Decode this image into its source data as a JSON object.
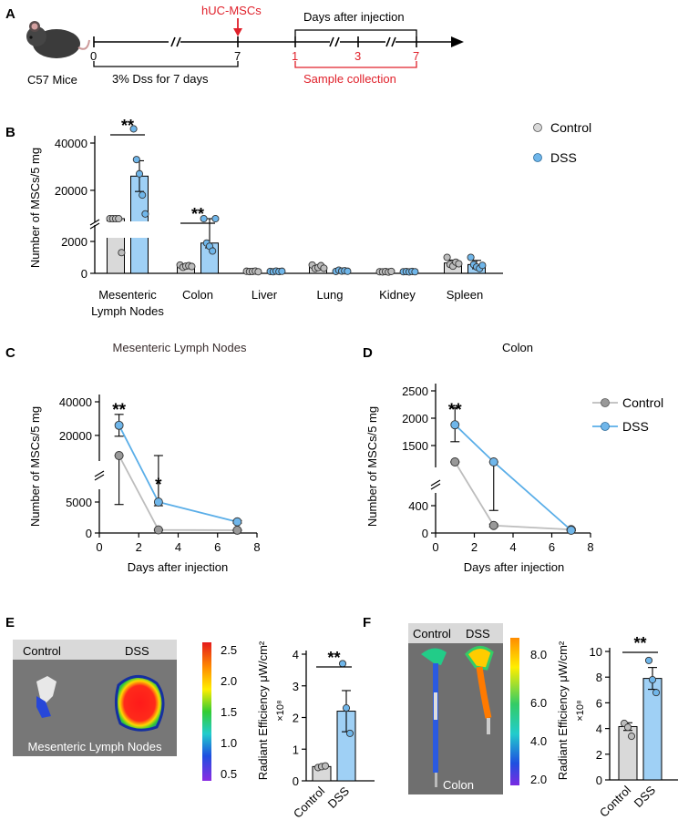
{
  "panel_labels": {
    "a": "A",
    "b": "B",
    "c": "C",
    "d": "D",
    "e": "E",
    "f": "F"
  },
  "colors": {
    "control_fill": "#d9d9d9",
    "control_dot": "#bdbdbd",
    "dss_fill": "#9fd0f5",
    "dss_dot": "#6fb6ea",
    "line_control": "#bdbdbd",
    "line_dss": "#5aaee8",
    "red": "#e0202a"
  },
  "timeline": {
    "mouse_label": "C57 Mice",
    "treatment_label": "hUC-MSCs",
    "days_after_label": "Days after injection",
    "tick_0": "0",
    "tick_7": "7",
    "sample_1": "1",
    "sample_3": "3",
    "sample_7": "7",
    "dss_label": "3% Dss for 7 days",
    "sample_collection_label": "Sample collection"
  },
  "chart_data": [
    {
      "id": "B",
      "type": "bar",
      "ylabel": "Number of MSCs/5 mg",
      "categories": [
        "Mesenteric Lymph Nodes",
        "Colon",
        "Liver",
        "Lung",
        "Kidney",
        "Spleen"
      ],
      "category_lines": [
        [
          "Mesenteric",
          "Lymph Nodes"
        ],
        [
          "Colon"
        ],
        [
          "Liver"
        ],
        [
          "Lung"
        ],
        [
          "Kidney"
        ],
        [
          "Spleen"
        ]
      ],
      "lower_ticks": [
        "0",
        "2000"
      ],
      "upper_ticks": [
        "20000",
        "40000"
      ],
      "significance": [
        {
          "category": 0,
          "label": "**"
        },
        {
          "category": 1,
          "label": "**"
        }
      ],
      "legend": [
        "Control",
        "DSS"
      ],
      "series": [
        {
          "name": "Control",
          "means": [
            5500,
            450,
            120,
            380,
            100,
            650
          ],
          "sem": [
            900,
            90,
            30,
            110,
            20,
            180
          ],
          "points": [
            [
              7000,
              6800,
              6500,
              5600,
              1300
            ],
            [
              520,
              380,
              450,
              480,
              430
            ],
            [
              130,
              110,
              120,
              140,
              100
            ],
            [
              520,
              300,
              360,
              480,
              320
            ],
            [
              100,
              90,
              110,
              80,
              120
            ],
            [
              1000,
              560,
              450,
              700,
              600
            ]
          ]
        },
        {
          "name": "DSS",
          "means": [
            26000,
            1900,
            120,
            150,
            100,
            550
          ],
          "sem": [
            6500,
            300,
            30,
            40,
            20,
            260
          ],
          "points": [
            [
              46000,
              33000,
              27000,
              18000,
              10000
            ],
            [
              2600,
              1900,
              1700,
              1400,
              2100
            ],
            [
              120,
              100,
              140,
              110,
              130
            ],
            [
              120,
              200,
              140,
              160,
              130
            ],
            [
              100,
              110,
              90,
              120,
              100
            ],
            [
              1000,
              550,
              400,
              300,
              500
            ]
          ]
        }
      ]
    },
    {
      "id": "C",
      "type": "line",
      "title": "Mesenteric Lymph Nodes",
      "xlabel": "Days after injection",
      "ylabel": "Number of MSCs/5 mg",
      "x_ticks": [
        "0",
        "2",
        "4",
        "6",
        "8"
      ],
      "lower_ticks": [
        "0",
        "5000"
      ],
      "upper_ticks": [
        "20000",
        "40000"
      ],
      "x": [
        1,
        3,
        7
      ],
      "series": [
        {
          "name": "Control",
          "values": [
            5500,
            500,
            450
          ],
          "sem": [
            900,
            100,
            80
          ]
        },
        {
          "name": "DSS",
          "values": [
            26000,
            5000,
            1800
          ],
          "sem": [
            6500,
            600,
            200
          ]
        }
      ],
      "annotations": [
        {
          "x": 1,
          "label": "**"
        },
        {
          "x": 3,
          "label": "*"
        }
      ]
    },
    {
      "id": "D",
      "type": "line",
      "title": "Colon",
      "xlabel": "Days after injection",
      "ylabel": "Number of MSCs/5 mg",
      "x_ticks": [
        "0",
        "2",
        "4",
        "6",
        "8"
      ],
      "lower_ticks": [
        "0",
        "400"
      ],
      "upper_ticks": [
        "1500",
        "2000",
        "2500"
      ],
      "x": [
        1,
        3,
        7
      ],
      "legend": [
        "Control",
        "DSS"
      ],
      "series": [
        {
          "name": "Control",
          "values": [
            450,
            110,
            50
          ],
          "sem": [
            30,
            20,
            15
          ]
        },
        {
          "name": "DSS",
          "values": [
            1880,
            410,
            40
          ],
          "sem": [
            310,
            80,
            10
          ]
        }
      ],
      "annotations": [
        {
          "x": 1,
          "label": "**"
        }
      ]
    },
    {
      "id": "E",
      "type": "bar",
      "ylabel": "Radiant Efficiency μW/cm²",
      "multiplier": "×10⁸",
      "categories": [
        "Control",
        "DSS"
      ],
      "y_ticks": [
        "0",
        "1",
        "2",
        "3",
        "4"
      ],
      "values": [
        0.45,
        2.2
      ],
      "sem": [
        0.05,
        0.65
      ],
      "points": [
        [
          0.42,
          0.45,
          0.47
        ],
        [
          3.7,
          2.3,
          1.5
        ]
      ],
      "significance": "**"
    },
    {
      "id": "F",
      "type": "bar",
      "ylabel": "Radiant Efficiency μW/cm²",
      "multiplier": "×10⁸",
      "categories": [
        "Control",
        "DSS"
      ],
      "y_ticks": [
        "0",
        "2",
        "4",
        "6",
        "8",
        "10"
      ],
      "values": [
        4.15,
        7.9
      ],
      "sem": [
        0.3,
        0.85
      ],
      "points": [
        [
          4.4,
          4.1,
          3.4
        ],
        [
          9.3,
          7.8,
          6.8
        ]
      ],
      "significance": "**"
    }
  ],
  "imaging": {
    "e_labels": {
      "control": "Control",
      "dss": "DSS",
      "organ": "Mesenteric Lymph Nodes"
    },
    "e_scale": [
      "2.5",
      "2.0",
      "1.5",
      "1.0",
      "0.5"
    ],
    "f_labels": {
      "control": "Control",
      "dss": "DSS",
      "organ": "Colon"
    },
    "f_scale": [
      "8.0",
      "6.0",
      "4.0",
      "2.0"
    ]
  }
}
